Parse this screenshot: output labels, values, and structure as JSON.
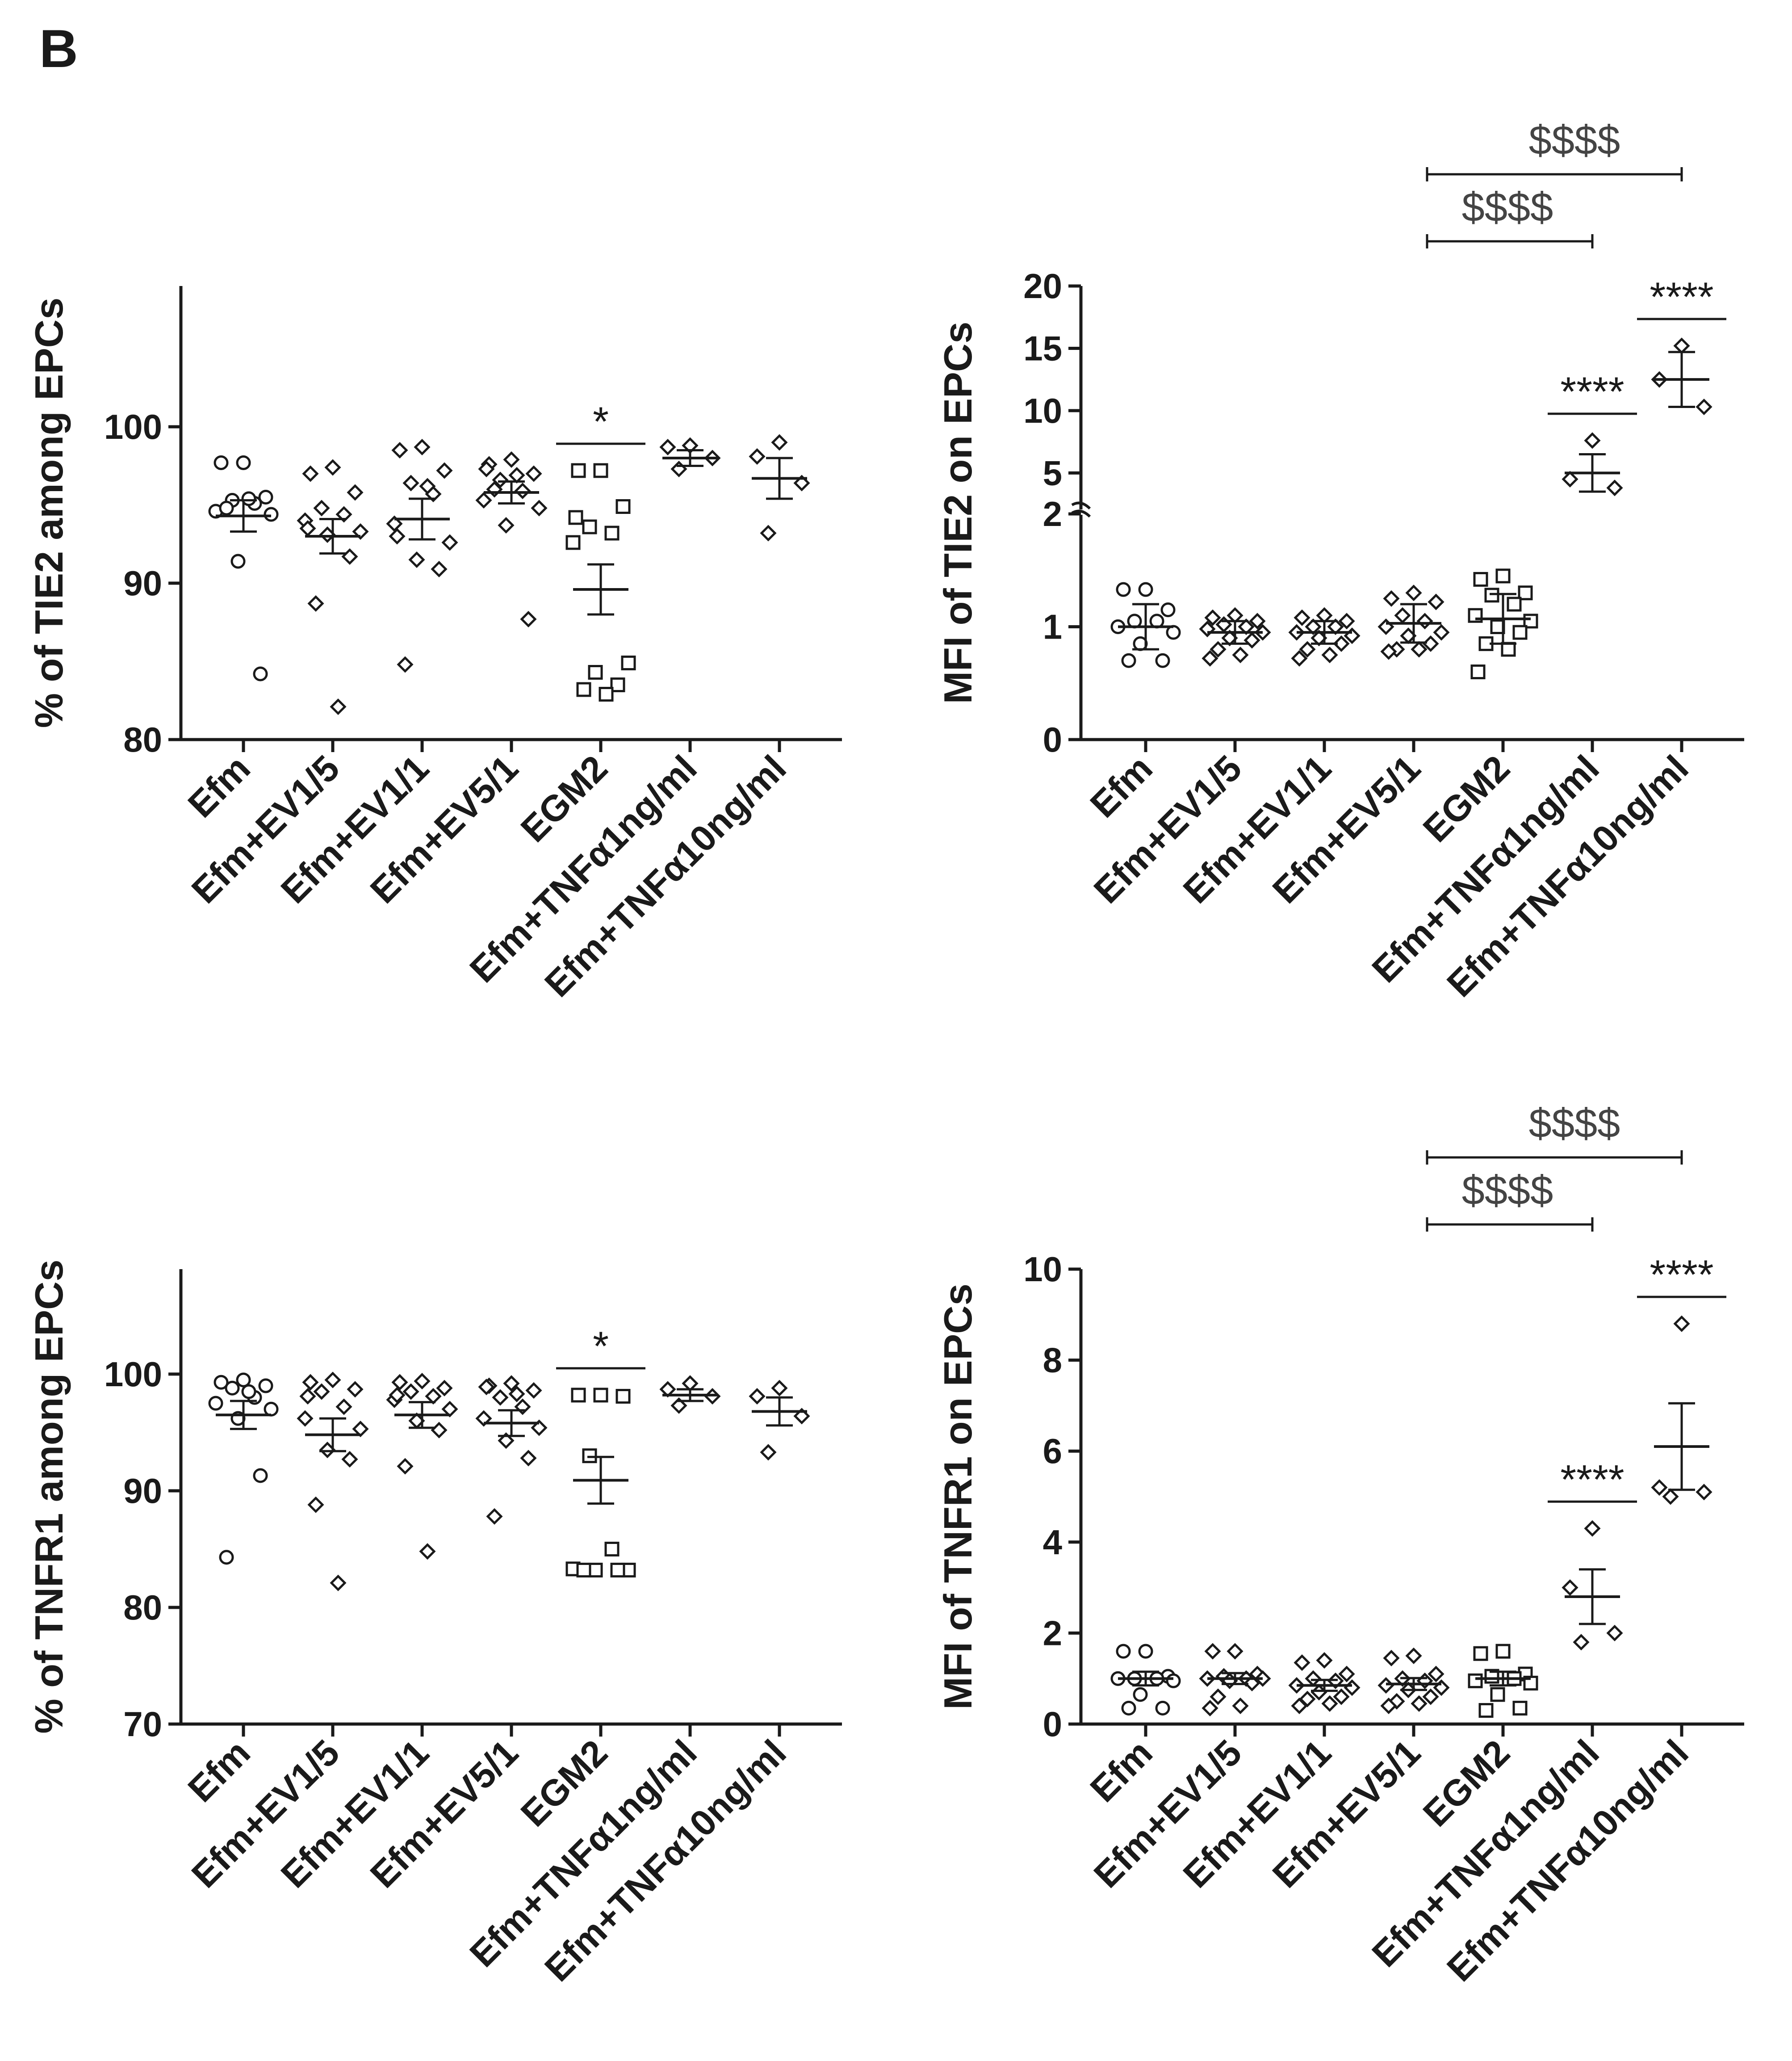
{
  "figure": {
    "panel_label": "B"
  },
  "colors": {
    "ink": "#1a1a1a",
    "marker_fill": "#ffffff",
    "bracket_text": "#444444"
  },
  "chart_data": [
    {
      "id": "tie2_percent",
      "type": "scatter",
      "title": "",
      "ylabel": "% of TIE2 among EPCs",
      "ylim": [
        80,
        109
      ],
      "yticks": [
        80,
        90,
        100
      ],
      "categories": [
        "Efm",
        "Efm+EV1/5",
        "Efm+EV1/1",
        "Efm+EV5/1",
        "EGM2",
        "Efm+TNFα1ng/ml",
        "Efm+TNFα10ng/ml"
      ],
      "markers": [
        "circle",
        "diamond",
        "diamond",
        "diamond",
        "square",
        "diamond",
        "diamond"
      ],
      "points": [
        [
          97.7,
          97.7,
          95.5,
          95.3,
          95.1,
          94.6,
          94.4,
          91.4,
          84.2,
          94.8,
          95.4
        ],
        [
          97.4,
          97.0,
          95.8,
          94.8,
          94.4,
          94.0,
          93.3,
          93.1,
          91.7,
          88.7,
          82.1,
          93.5
        ],
        [
          98.7,
          98.5,
          97.2,
          96.4,
          95.7,
          93.8,
          92.6,
          91.5,
          90.9,
          84.8,
          96.2,
          93.0
        ],
        [
          97.9,
          97.6,
          97.0,
          96.6,
          95.9,
          95.3,
          94.8,
          93.7,
          87.7,
          96.0,
          96.9,
          97.3
        ],
        [
          97.2,
          97.2,
          94.9,
          93.6,
          93.2,
          92.6,
          84.9,
          84.3,
          83.5,
          83.2,
          82.9,
          94.2
        ],
        [
          98.8,
          98.7,
          98.0,
          97.3
        ],
        [
          99.0,
          98.1,
          96.4,
          93.2
        ]
      ],
      "mean": [
        94.3,
        93.0,
        94.1,
        95.8,
        89.6,
        98.0,
        96.7
      ],
      "sem": [
        1.0,
        1.1,
        1.3,
        0.7,
        1.6,
        0.5,
        1.3
      ],
      "significance": [
        {
          "category_index": 4,
          "label": "*"
        }
      ],
      "brackets": []
    },
    {
      "id": "tie2_mfi",
      "type": "scatter",
      "title": "",
      "ylabel": "MFI of TIE2 on EPCs",
      "broken_axis": true,
      "lower_ylim": [
        0,
        2
      ],
      "lower_yticks": [
        0,
        1,
        2
      ],
      "upper_ylim": [
        2,
        20
      ],
      "upper_yticks": [
        2,
        5,
        10,
        15,
        20
      ],
      "categories": [
        "Efm",
        "Efm+EV1/5",
        "Efm+EV1/1",
        "Efm+EV5/1",
        "EGM2",
        "Efm+TNFα1ng/ml",
        "Efm+TNFα10ng/ml"
      ],
      "markers": [
        "circle",
        "diamond",
        "diamond",
        "diamond",
        "square",
        "diamond",
        "diamond"
      ],
      "points": [
        [
          1.33,
          1.33,
          1.15,
          1.05,
          1.05,
          1.0,
          0.95,
          0.85,
          0.7,
          0.7
        ],
        [
          1.1,
          1.08,
          1.05,
          1.02,
          1.0,
          0.98,
          0.95,
          0.9,
          0.88,
          0.8,
          0.75,
          0.72
        ],
        [
          1.1,
          1.08,
          1.05,
          1.0,
          1.0,
          0.95,
          0.92,
          0.9,
          0.85,
          0.8,
          0.75,
          0.72
        ],
        [
          1.3,
          1.25,
          1.22,
          1.1,
          1.05,
          1.0,
          0.95,
          0.92,
          0.85,
          0.8,
          0.8,
          0.78
        ],
        [
          1.45,
          1.42,
          1.3,
          1.28,
          1.2,
          1.1,
          1.05,
          1.0,
          0.95,
          0.85,
          0.8,
          0.6
        ],
        [
          7.6,
          4.5,
          3.8
        ],
        [
          15.2,
          12.5,
          10.3
        ]
      ],
      "mean": [
        1.0,
        0.95,
        0.95,
        1.03,
        1.07,
        5.0,
        12.5
      ],
      "sem": [
        0.2,
        0.1,
        0.1,
        0.17,
        0.22,
        1.5,
        2.2
      ],
      "significance": [
        {
          "category_index": 5,
          "label": "****"
        },
        {
          "category_index": 6,
          "label": "****"
        }
      ],
      "brackets": [
        {
          "from_index": 3,
          "to_index": 5,
          "label": "$$$$"
        },
        {
          "from_index": 3,
          "to_index": 6,
          "label": "$$$$"
        }
      ]
    },
    {
      "id": "tnfr1_percent",
      "type": "scatter",
      "title": "",
      "ylabel": "% of TNFR1 among EPCs",
      "ylim": [
        70,
        109
      ],
      "yticks": [
        70,
        80,
        90,
        100
      ],
      "categories": [
        "Efm",
        "Efm+EV1/5",
        "Efm+EV1/1",
        "Efm+EV5/1",
        "EGM2",
        "Efm+TNFα1ng/ml",
        "Efm+TNFα10ng/ml"
      ],
      "markers": [
        "circle",
        "diamond",
        "diamond",
        "diamond",
        "square",
        "diamond",
        "diamond"
      ],
      "points": [
        [
          99.5,
          99.3,
          99.0,
          98.8,
          98.0,
          97.5,
          97.0,
          96.2,
          91.3,
          84.3,
          98.5
        ],
        [
          99.5,
          99.3,
          98.7,
          98.5,
          97.2,
          96.2,
          95.3,
          93.5,
          92.7,
          88.8,
          82.1,
          98.1
        ],
        [
          99.4,
          99.3,
          98.8,
          98.5,
          98.1,
          97.8,
          97.0,
          96.0,
          95.2,
          92.1,
          84.8,
          98.2
        ],
        [
          99.2,
          99.0,
          98.6,
          98.0,
          97.2,
          96.2,
          95.4,
          94.3,
          92.8,
          87.8,
          98.3,
          98.9
        ],
        [
          98.2,
          98.2,
          98.1,
          93.0,
          85.0,
          83.3,
          83.2,
          83.2,
          83.2,
          83.2
        ],
        [
          99.2,
          98.7,
          98.1,
          97.3
        ],
        [
          98.8,
          98.1,
          96.4,
          93.3
        ]
      ],
      "mean": [
        96.5,
        94.8,
        96.5,
        95.8,
        90.9,
        98.2,
        96.8
      ],
      "sem": [
        1.2,
        1.4,
        1.1,
        1.1,
        2.0,
        0.5,
        1.2
      ],
      "significance": [
        {
          "category_index": 4,
          "label": "*"
        }
      ],
      "brackets": []
    },
    {
      "id": "tnfr1_mfi",
      "type": "scatter",
      "title": "",
      "ylabel": "MFI of TNFR1 on EPCs",
      "ylim": [
        0,
        10
      ],
      "yticks": [
        0,
        2,
        4,
        6,
        8,
        10
      ],
      "categories": [
        "Efm",
        "Efm+EV1/5",
        "Efm+EV1/1",
        "Efm+EV5/1",
        "EGM2",
        "Efm+TNFα1ng/ml",
        "Efm+TNFα10ng/ml"
      ],
      "markers": [
        "circle",
        "diamond",
        "diamond",
        "diamond",
        "square",
        "diamond",
        "diamond"
      ],
      "points": [
        [
          1.6,
          1.6,
          1.05,
          1.0,
          1.0,
          1.0,
          0.95,
          0.65,
          0.35,
          0.35
        ],
        [
          1.6,
          1.6,
          1.1,
          1.05,
          1.0,
          1.0,
          1.0,
          0.95,
          0.9,
          0.6,
          0.4,
          0.35
        ],
        [
          1.4,
          1.35,
          1.1,
          1.0,
          0.95,
          0.85,
          0.8,
          0.7,
          0.6,
          0.55,
          0.45,
          0.4
        ],
        [
          1.5,
          1.45,
          1.1,
          1.0,
          0.95,
          0.85,
          0.8,
          0.75,
          0.6,
          0.5,
          0.45,
          0.4
        ],
        [
          1.6,
          1.55,
          1.1,
          1.05,
          1.0,
          0.95,
          0.9,
          0.65,
          0.35,
          0.3
        ],
        [
          4.3,
          3.0,
          2.0,
          1.8
        ],
        [
          8.8,
          5.2,
          5.1,
          5.0
        ]
      ],
      "mean": [
        1.0,
        1.0,
        0.85,
        0.88,
        1.0,
        2.8,
        6.1
      ],
      "sem": [
        0.15,
        0.12,
        0.12,
        0.13,
        0.15,
        0.6,
        0.95
      ],
      "significance": [
        {
          "category_index": 5,
          "label": "****"
        },
        {
          "category_index": 6,
          "label": "****"
        }
      ],
      "brackets": [
        {
          "from_index": 3,
          "to_index": 5,
          "label": "$$$$"
        },
        {
          "from_index": 3,
          "to_index": 6,
          "label": "$$$$"
        }
      ]
    }
  ]
}
